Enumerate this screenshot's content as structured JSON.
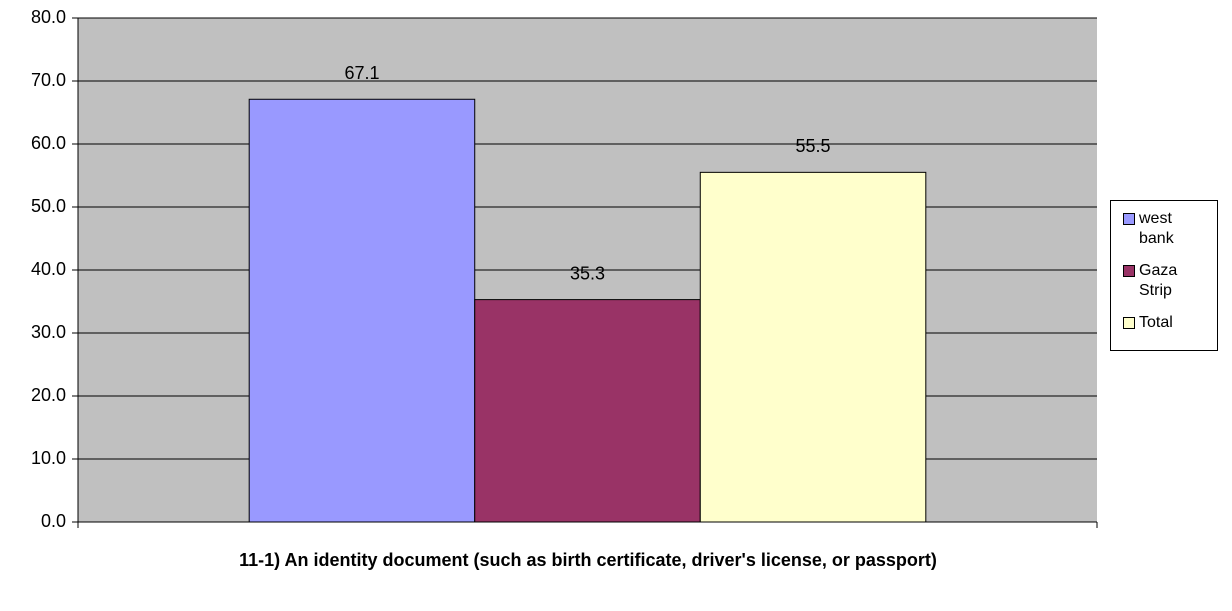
{
  "chart_data": {
    "type": "bar",
    "categories": [
      "11-1) An identity document (such as birth certificate, driver's license, or passport)"
    ],
    "series": [
      {
        "name": "west bank",
        "color": "#9999ff",
        "values": [
          67.1
        ]
      },
      {
        "name": "Gaza Strip",
        "color": "#993366",
        "values": [
          35.3
        ]
      },
      {
        "name": "Total",
        "color": "#ffffcc",
        "values": [
          55.5
        ]
      }
    ],
    "ylim": [
      0,
      80
    ],
    "yticks": [
      {
        "value": 0,
        "label": "0.0"
      },
      {
        "value": 10,
        "label": "10.0"
      },
      {
        "value": 20,
        "label": "20.0"
      },
      {
        "value": 30,
        "label": "30.0"
      },
      {
        "value": 40,
        "label": "40.0"
      },
      {
        "value": 50,
        "label": "50.0"
      },
      {
        "value": 60,
        "label": "60.0"
      },
      {
        "value": 70,
        "label": "70.0"
      },
      {
        "value": 80,
        "label": "80.0"
      }
    ],
    "grid": true,
    "legend": "right",
    "plot_background": "#c0c0c0"
  }
}
